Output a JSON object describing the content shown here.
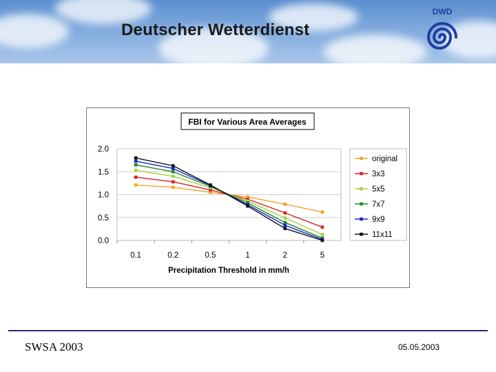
{
  "header": {
    "title": "Deutscher Wetterdienst",
    "logo_text": "DWD"
  },
  "footer": {
    "left_text": "SWSA 2003",
    "date": "05.05.2003"
  },
  "colors": {
    "original": "#f0a52a",
    "3x3": "#e02020",
    "5x5": "#a8d040",
    "7x7": "#1c8a2a",
    "9x9": "#2020d0",
    "11x11": "#101010",
    "logo_blue": "#1f3fa0"
  },
  "chart_data": {
    "type": "line",
    "title": "FBI for Various Area Averages",
    "xlabel": "Precipitation Threshold in mm/h",
    "ylabel": "",
    "categories": [
      "0.1",
      "0.2",
      "0.5",
      "1",
      "2",
      "5"
    ],
    "ylim": [
      0,
      2
    ],
    "yticks": [
      "0.0",
      "0.5",
      "1.0",
      "1.5",
      "2.0"
    ],
    "grid": "horizontal",
    "legend": "right",
    "series": [
      {
        "name": "original",
        "values": [
          1.21,
          1.16,
          1.05,
          0.95,
          0.79,
          0.62
        ]
      },
      {
        "name": "3x3",
        "values": [
          1.38,
          1.28,
          1.1,
          0.9,
          0.6,
          0.29
        ]
      },
      {
        "name": "5x5",
        "values": [
          1.53,
          1.4,
          1.15,
          0.86,
          0.49,
          0.13
        ]
      },
      {
        "name": "7x7",
        "values": [
          1.65,
          1.5,
          1.18,
          0.82,
          0.39,
          0.05
        ]
      },
      {
        "name": "9x9",
        "values": [
          1.73,
          1.57,
          1.2,
          0.78,
          0.33,
          0.02
        ]
      },
      {
        "name": "11x11",
        "values": [
          1.8,
          1.63,
          1.21,
          0.75,
          0.26,
          0.0
        ]
      }
    ]
  }
}
